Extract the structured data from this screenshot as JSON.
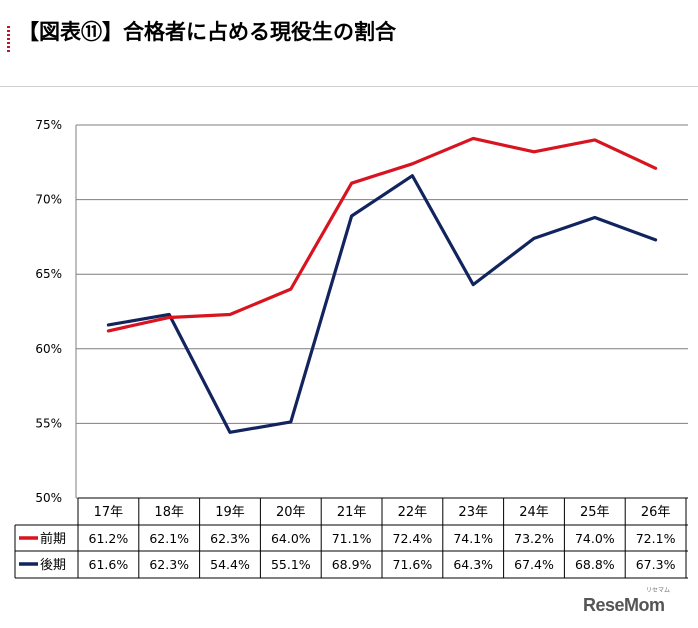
{
  "title": "【図表⑪】合格者に占める現役生の割合",
  "watermark": "ReseMom",
  "watermark_kana": "リセマム",
  "chart_data": {
    "type": "line",
    "categories": [
      "17年",
      "18年",
      "19年",
      "20年",
      "21年",
      "22年",
      "23年",
      "24年",
      "25年",
      "26年"
    ],
    "y_ticks": [
      "75%",
      "70%",
      "65%",
      "60%",
      "55%",
      "50%"
    ],
    "ylim": [
      50,
      75
    ],
    "grid": true,
    "legend": "table-below",
    "series": [
      {
        "name": "前期",
        "color": "#d7141f",
        "values": [
          61.2,
          62.1,
          62.3,
          64.0,
          71.1,
          72.4,
          74.1,
          73.2,
          74.0,
          72.1
        ],
        "labels": [
          "61.2%",
          "62.1%",
          "62.3%",
          "64.0%",
          "71.1%",
          "72.4%",
          "74.1%",
          "73.2%",
          "74.0%",
          "72.1%"
        ]
      },
      {
        "name": "後期",
        "color": "#12245e",
        "values": [
          61.6,
          62.3,
          54.4,
          55.1,
          68.9,
          71.6,
          64.3,
          67.4,
          68.8,
          67.3
        ],
        "labels": [
          "61.6%",
          "62.3%",
          "54.4%",
          "55.1%",
          "68.9%",
          "71.6%",
          "64.3%",
          "67.4%",
          "68.8%",
          "67.3%"
        ]
      }
    ]
  }
}
